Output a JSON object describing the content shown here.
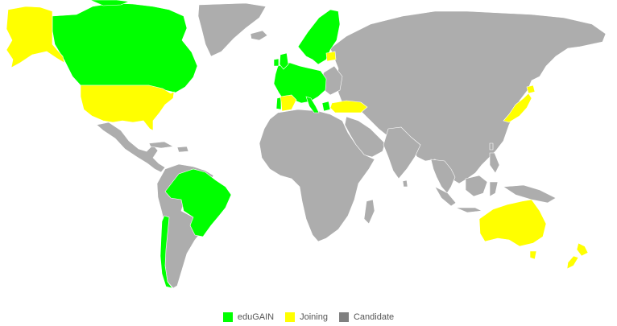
{
  "colors": {
    "edugain": "#00ff00",
    "joining": "#ffff00",
    "candidate": "#adadad",
    "candidate_legend": "#808080",
    "border": "#ffffff"
  },
  "legend": [
    {
      "label": "eduGAIN",
      "color": "#00ff00"
    },
    {
      "label": "Joining",
      "color": "#ffff00"
    },
    {
      "label": "Candidate",
      "color": "#808080"
    }
  ]
}
